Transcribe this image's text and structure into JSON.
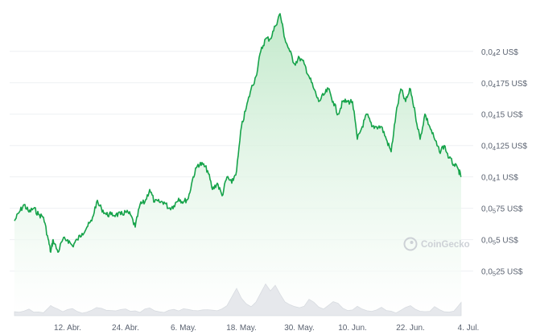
{
  "watermark": "CoinGecko",
  "colors": {
    "line": "#16a34a",
    "area_top": "#bfe8c8",
    "area_bottom": "#ffffff",
    "grid": "#eef0f3",
    "volume": "#e6e8ec",
    "volume_edge": "#d7dbe0",
    "axis_text": "#5a6270"
  },
  "chart_data": {
    "type": "area",
    "title": "",
    "xlabel": "",
    "ylabel": "",
    "ylim": [
      2.1e-06,
      4.3e-06
    ],
    "y_ticks": [
      {
        "prefix": "0,0",
        "sub": "5",
        "digits": "25",
        "suffix": " US$",
        "value": 2.25e-06
      },
      {
        "prefix": "0,0",
        "sub": "5",
        "digits": "5",
        "suffix": " US$",
        "value": 2.5e-06
      },
      {
        "prefix": "0,0",
        "sub": "5",
        "digits": "75",
        "suffix": " US$",
        "value": 2.75e-06
      },
      {
        "prefix": "0,0",
        "sub": "4",
        "digits": "1",
        "suffix": " US$",
        "value": 3e-06
      },
      {
        "prefix": "0,0",
        "sub": "4",
        "digits": "125",
        "suffix": " US$",
        "value": 3.25e-06
      },
      {
        "prefix": "0,0",
        "sub": "4",
        "digits": "15",
        "suffix": " US$",
        "value": 3.5e-06
      },
      {
        "prefix": "0,0",
        "sub": "4",
        "digits": "175",
        "suffix": " US$",
        "value": 3.75e-06
      },
      {
        "prefix": "0,0",
        "sub": "4",
        "digits": "2",
        "suffix": " US$",
        "value": 4e-06
      }
    ],
    "x_ticks": [
      {
        "label": "12. Abr.",
        "day": 11
      },
      {
        "label": "24. Abr.",
        "day": 23
      },
      {
        "label": "6. May.",
        "day": 35
      },
      {
        "label": "18. May.",
        "day": 47
      },
      {
        "label": "30. May.",
        "day": 59
      },
      {
        "label": "10. Jun.",
        "day": 70
      },
      {
        "label": "22. Jun.",
        "day": 82
      },
      {
        "label": "4. Jul.",
        "day": 94
      }
    ],
    "x": [
      0,
      1,
      2,
      3,
      4,
      5,
      6,
      7,
      7.5,
      8,
      9,
      10,
      11,
      12,
      13,
      14,
      15,
      16,
      17,
      18,
      19,
      20,
      21,
      22,
      23,
      24,
      25,
      26,
      27,
      28,
      29,
      30,
      31,
      32,
      33,
      34,
      35,
      36,
      37,
      38,
      39,
      40,
      41,
      42,
      43,
      44,
      45,
      46,
      47,
      48,
      49,
      50,
      51,
      52,
      53,
      54,
      55,
      56,
      57,
      58,
      59,
      60,
      61,
      62,
      63,
      64,
      65,
      66,
      67,
      68,
      69,
      70,
      71,
      72,
      73,
      74,
      75,
      76,
      77,
      78,
      79,
      80,
      81,
      82,
      83,
      84,
      85,
      86,
      87,
      88,
      89,
      90,
      91,
      92,
      92.5
    ],
    "series": [
      {
        "values": [
          2.65e-06,
          2.72e-06,
          2.78e-06,
          2.72e-06,
          2.75e-06,
          2.7e-06,
          2.68e-06,
          2.5e-06,
          2.4e-06,
          2.5e-06,
          2.4e-06,
          2.5e-06,
          2.5e-06,
          2.45e-06,
          2.5e-06,
          2.55e-06,
          2.6e-06,
          2.65e-06,
          2.8e-06,
          2.75e-06,
          2.7e-06,
          2.7e-06,
          2.7e-06,
          2.7e-06,
          2.72e-06,
          2.7e-06,
          2.6e-06,
          2.78e-06,
          2.8e-06,
          2.9e-06,
          2.8e-06,
          2.8e-06,
          2.8e-06,
          2.75e-06,
          2.77e-06,
          2.83e-06,
          2.8e-06,
          2.83e-06,
          3e-06,
          3.1e-06,
          3.1e-06,
          3.05e-06,
          2.9e-06,
          2.95e-06,
          2.85e-06,
          3e-06,
          2.95e-06,
          3.05e-06,
          3.4e-06,
          3.55e-06,
          3.7e-06,
          3.8e-06,
          4e-06,
          4.1e-06,
          4.1e-06,
          4.2e-06,
          4.3e-06,
          4.1e-06,
          4e-06,
          3.9e-06,
          3.95e-06,
          3.9e-06,
          3.8e-06,
          3.7e-06,
          3.6e-06,
          3.65e-06,
          3.7e-06,
          3.6e-06,
          3.5e-06,
          3.6e-06,
          3.6e-06,
          3.6e-06,
          3.3e-06,
          3.4e-06,
          3.5e-06,
          3.4e-06,
          3.4e-06,
          3.4e-06,
          3.3e-06,
          3.2e-06,
          3.5e-06,
          3.7e-06,
          3.6e-06,
          3.7e-06,
          3.5e-06,
          3.3e-06,
          3.5e-06,
          3.4e-06,
          3.3e-06,
          3.2e-06,
          3.25e-06,
          3.15e-06,
          3.1e-06,
          3.05e-06,
          3e-06
        ]
      }
    ],
    "volume": [
      0.1,
      0.12,
      0.14,
      0.18,
      0.12,
      0.1,
      0.11,
      0.2,
      0.26,
      0.22,
      0.15,
      0.12,
      0.14,
      0.18,
      0.1,
      0.1,
      0.12,
      0.16,
      0.22,
      0.18,
      0.14,
      0.12,
      0.1,
      0.14,
      0.2,
      0.14,
      0.12,
      0.1,
      0.16,
      0.22,
      0.14,
      0.12,
      0.1,
      0.12,
      0.14,
      0.16,
      0.2,
      0.18,
      0.12,
      0.1,
      0.14,
      0.18,
      0.16,
      0.12,
      0.18,
      0.25,
      0.5,
      0.75,
      0.45,
      0.3,
      0.22,
      0.35,
      0.6,
      0.85,
      0.7,
      0.8,
      0.55,
      0.4,
      0.3,
      0.25,
      0.22,
      0.28,
      0.45,
      0.38,
      0.25,
      0.2,
      0.3,
      0.4,
      0.35,
      0.2,
      0.15,
      0.18,
      0.24,
      0.2,
      0.16,
      0.14,
      0.18,
      0.22,
      0.15,
      0.12,
      0.1,
      0.14,
      0.2,
      0.24,
      0.18,
      0.12,
      0.1,
      0.14,
      0.22,
      0.16,
      0.12,
      0.1,
      0.15,
      0.3,
      0.35
    ],
    "grid": true,
    "legend": "none"
  }
}
